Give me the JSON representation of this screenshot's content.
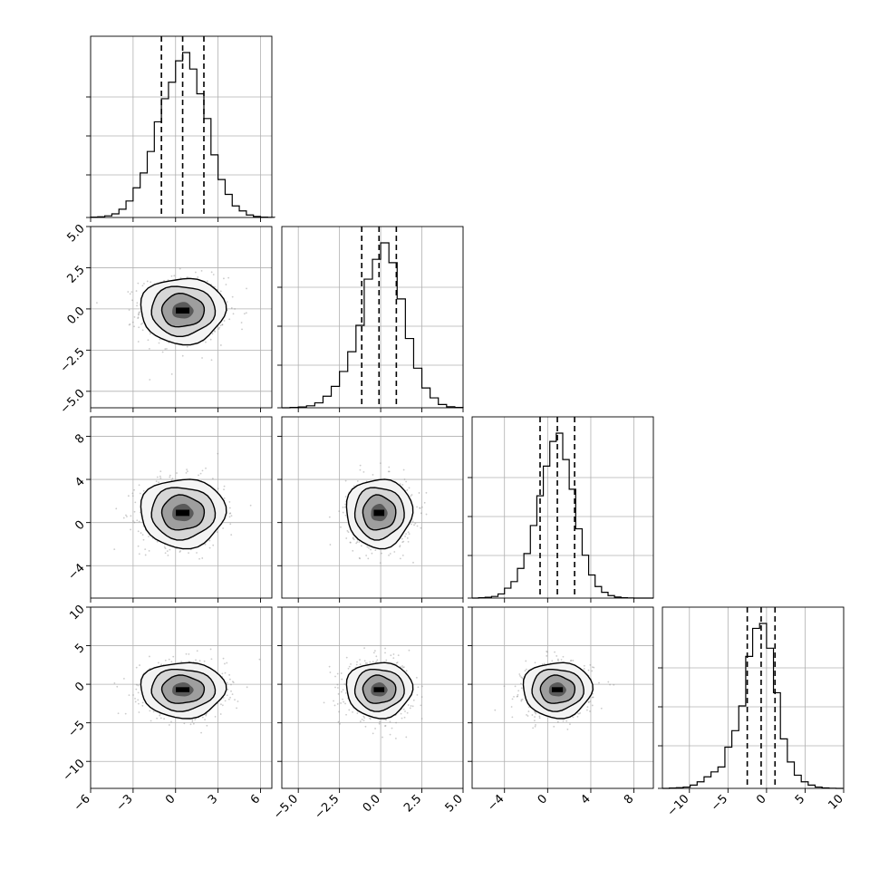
{
  "chart_data": {
    "type": "corner",
    "title": "",
    "parameters": [
      {
        "id": "p1",
        "range": [
          -6.0,
          6.8
        ],
        "ticks": [
          -6,
          -3,
          0,
          3,
          6
        ],
        "tick_labels": [
          "−6",
          "−3",
          "0",
          "3",
          "6"
        ],
        "mean": 0.5,
        "sd": 1.5,
        "quantiles": [
          -1.0,
          0.5,
          2.0
        ]
      },
      {
        "id": "p2",
        "range": [
          -6.0,
          5.0
        ],
        "ticks": [
          -5.0,
          -2.5,
          0.0,
          2.5,
          5.0
        ],
        "tick_labels": [
          "−5.0",
          "−2.5",
          "0.0",
          "2.5",
          "5.0"
        ],
        "mean": -0.1,
        "sd": 1.0,
        "quantiles": [
          -1.15,
          -0.1,
          0.95
        ]
      },
      {
        "id": "p3",
        "range": [
          -7.0,
          9.8
        ],
        "ticks": [
          -4,
          0,
          4,
          8
        ],
        "tick_labels": [
          "−4",
          "0",
          "4",
          "8"
        ],
        "mean": 0.9,
        "sd": 1.6,
        "quantiles": [
          -0.7,
          0.9,
          2.5
        ]
      },
      {
        "id": "p4",
        "range": [
          -13.5,
          10.0
        ],
        "ticks": [
          -10,
          -5,
          0,
          5,
          10
        ],
        "tick_labels": [
          "−10",
          "−5",
          "0",
          "5",
          "10"
        ],
        "mean": -0.7,
        "sd": 1.8,
        "quantiles": [
          -2.5,
          -0.7,
          1.1
        ]
      }
    ],
    "histograms": [
      {
        "param": "p1",
        "bin_edges": [
          -6.0,
          -5.5,
          -5.0,
          -4.5,
          -4.0,
          -3.5,
          -3.0,
          -2.5,
          -2.0,
          -1.5,
          -1.0,
          -0.5,
          0.0,
          0.5,
          1.0,
          1.5,
          2.0,
          2.5,
          3.0,
          3.5,
          4.0,
          4.5,
          5.0,
          5.5,
          6.0,
          6.5,
          7.0
        ],
        "counts": [
          0.002,
          0.004,
          0.01,
          0.022,
          0.05,
          0.1,
          0.18,
          0.27,
          0.4,
          0.58,
          0.72,
          0.82,
          0.95,
          1.0,
          0.9,
          0.75,
          0.6,
          0.38,
          0.23,
          0.14,
          0.07,
          0.04,
          0.015,
          0.006,
          0.002,
          0.001
        ]
      },
      {
        "param": "p2",
        "bin_edges": [
          -6.0,
          -5.5,
          -5.0,
          -4.5,
          -4.0,
          -3.5,
          -3.0,
          -2.5,
          -2.0,
          -1.5,
          -1.0,
          -0.5,
          0.0,
          0.5,
          1.0,
          1.5,
          2.0,
          2.5,
          3.0,
          3.5,
          4.0,
          4.5,
          5.0
        ],
        "counts": [
          0.0,
          0.002,
          0.005,
          0.012,
          0.03,
          0.07,
          0.13,
          0.22,
          0.34,
          0.5,
          0.78,
          0.9,
          1.0,
          0.88,
          0.66,
          0.42,
          0.24,
          0.12,
          0.06,
          0.02,
          0.006,
          0.002
        ]
      },
      {
        "param": "p3",
        "bin_edges": [
          -7.0,
          -6.4,
          -5.8,
          -5.2,
          -4.6,
          -4.0,
          -3.4,
          -2.8,
          -2.2,
          -1.6,
          -1.0,
          -0.4,
          0.2,
          0.8,
          1.4,
          2.0,
          2.6,
          3.2,
          3.8,
          4.4,
          5.0,
          5.6,
          6.2,
          6.8,
          7.4,
          8.0,
          8.6,
          9.2,
          9.8
        ],
        "counts": [
          0.0,
          0.002,
          0.005,
          0.01,
          0.025,
          0.06,
          0.1,
          0.18,
          0.27,
          0.44,
          0.62,
          0.8,
          0.95,
          1.0,
          0.84,
          0.66,
          0.42,
          0.26,
          0.14,
          0.07,
          0.035,
          0.015,
          0.006,
          0.002,
          0.001,
          0.0,
          0.0,
          0.0
        ]
      },
      {
        "param": "p4",
        "bin_edges": [
          -13.5,
          -12.6,
          -11.7,
          -10.8,
          -9.9,
          -9.0,
          -8.1,
          -7.2,
          -6.3,
          -5.4,
          -4.5,
          -3.6,
          -2.7,
          -1.8,
          -0.9,
          0.0,
          0.9,
          1.8,
          2.7,
          3.6,
          4.5,
          5.4,
          6.3,
          7.2,
          8.1,
          9.0,
          9.9
        ],
        "counts": [
          0.0,
          0.002,
          0.004,
          0.008,
          0.02,
          0.04,
          0.07,
          0.1,
          0.13,
          0.25,
          0.35,
          0.5,
          0.8,
          0.97,
          1.0,
          0.85,
          0.58,
          0.3,
          0.16,
          0.08,
          0.04,
          0.02,
          0.008,
          0.003,
          0.001,
          0.0
        ]
      }
    ],
    "contours_2d": [
      {
        "x": "p1",
        "y": "p2",
        "levels_sigma": [
          0.5,
          1.0,
          1.5,
          2.0
        ]
      },
      {
        "x": "p1",
        "y": "p3",
        "levels_sigma": [
          0.5,
          1.0,
          1.5,
          2.0
        ]
      },
      {
        "x": "p2",
        "y": "p3",
        "levels_sigma": [
          0.5,
          1.0,
          1.5,
          2.0
        ]
      },
      {
        "x": "p1",
        "y": "p4",
        "levels_sigma": [
          0.5,
          1.0,
          1.5,
          2.0
        ]
      },
      {
        "x": "p2",
        "y": "p4",
        "levels_sigma": [
          0.5,
          1.0,
          1.5,
          2.0
        ]
      },
      {
        "x": "p3",
        "y": "p4",
        "levels_sigma": [
          0.5,
          1.0,
          1.5,
          2.0
        ]
      }
    ],
    "grid": true
  }
}
